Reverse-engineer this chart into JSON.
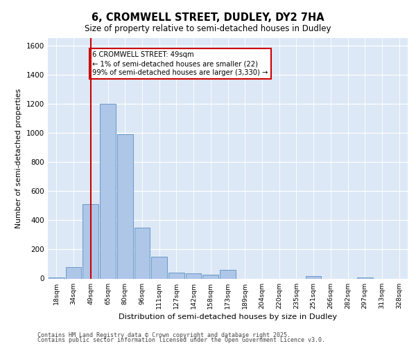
{
  "title_line1": "6, CROMWELL STREET, DUDLEY, DY2 7HA",
  "title_line2": "Size of property relative to semi-detached houses in Dudley",
  "xlabel": "Distribution of semi-detached houses by size in Dudley",
  "ylabel": "Number of semi-detached properties",
  "categories": [
    "18sqm",
    "34sqm",
    "49sqm",
    "65sqm",
    "80sqm",
    "96sqm",
    "111sqm",
    "127sqm",
    "142sqm",
    "158sqm",
    "173sqm",
    "189sqm",
    "204sqm",
    "220sqm",
    "235sqm",
    "251sqm",
    "266sqm",
    "282sqm",
    "297sqm",
    "313sqm",
    "328sqm"
  ],
  "values": [
    5,
    80,
    510,
    1200,
    990,
    350,
    150,
    40,
    35,
    25,
    60,
    0,
    0,
    0,
    0,
    15,
    0,
    0,
    5,
    0,
    0
  ],
  "bar_color": "#aec6e8",
  "bar_edge_color": "#5a8fc2",
  "vline_x_index": 2,
  "vline_color": "#cc0000",
  "annotation_text": "6 CROMWELL STREET: 49sqm\n← 1% of semi-detached houses are smaller (22)\n99% of semi-detached houses are larger (3,330) →",
  "annotation_box_color": "#cc0000",
  "ylim": [
    0,
    1650
  ],
  "yticks": [
    0,
    200,
    400,
    600,
    800,
    1000,
    1200,
    1400,
    1600
  ],
  "background_color": "#dce8f5",
  "footer_line1": "Contains HM Land Registry data © Crown copyright and database right 2025.",
  "footer_line2": "Contains public sector information licensed under the Open Government Licence v3.0."
}
